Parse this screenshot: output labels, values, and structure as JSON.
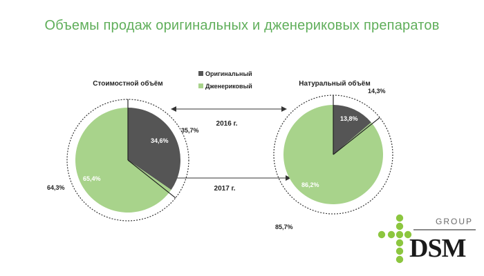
{
  "title": "Объемы продаж оригинальных и дженериковых препаратов",
  "colors": {
    "original": "#555555",
    "generic": "#a8d38b",
    "title": "#5fae5a",
    "logo_green": "#8cc63f"
  },
  "chart_data": [
    {
      "type": "pie",
      "title": "Стоимостной объём",
      "inner": {
        "year": "2017 г.",
        "slices": [
          {
            "name": "Оригинальный",
            "value": 34.6,
            "label": "34,6%"
          },
          {
            "name": "Дженериковый",
            "value": 65.4,
            "label": "65,4%"
          }
        ]
      },
      "outer": {
        "year": "2016 г.",
        "slices": [
          {
            "name": "Оригинальный",
            "value": 35.7,
            "label": "35,7%"
          },
          {
            "name": "Дженериковый",
            "value": 64.3,
            "label": "64,3%"
          }
        ]
      }
    },
    {
      "type": "pie",
      "title": "Натуральный объём",
      "inner": {
        "year": "2017 г.",
        "slices": [
          {
            "name": "Оригинальный",
            "value": 13.8,
            "label": "13,8%"
          },
          {
            "name": "Дженериковый",
            "value": 86.2,
            "label": "86,2%"
          }
        ]
      },
      "outer": {
        "year": "2016 г.",
        "slices": [
          {
            "name": "Оригинальный",
            "value": 14.3,
            "label": "14,3%"
          },
          {
            "name": "Дженериковый",
            "value": 85.7,
            "label": "85,7%"
          }
        ]
      }
    }
  ],
  "legend": [
    {
      "name": "Оригинальный",
      "color": "#555555"
    },
    {
      "name": "Дженериковый",
      "color": "#a8d38b"
    }
  ],
  "year_labels": [
    "2016 г.",
    "2017 г."
  ],
  "logo": {
    "group": "GROUP",
    "name": "DSM"
  }
}
